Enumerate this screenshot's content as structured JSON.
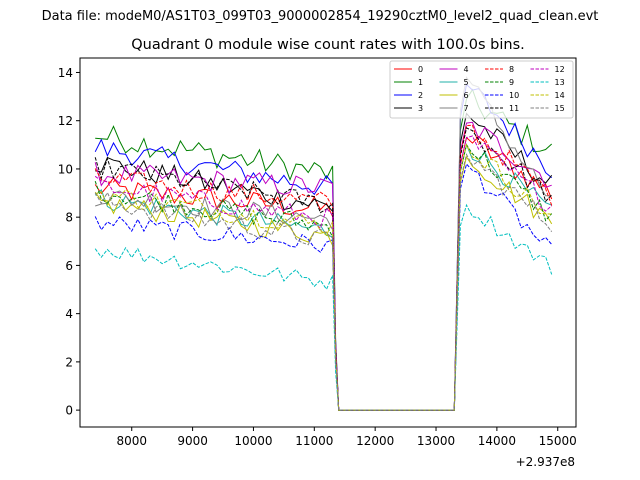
{
  "suptitle": "Data file: modeM0/AS1T03_099T03_9000002854_19290cztM0_level2_quad_clean.evt",
  "chart_data": {
    "type": "line",
    "title": "Quadrant 0 module wise count rates with 100.0s bins.",
    "xlabel": "",
    "ylabel": "",
    "x_offset_label": "+2.937e8",
    "xlim": [
      7150,
      15300
    ],
    "ylim": [
      -0.7,
      14.6
    ],
    "x_ticks": [
      8000,
      9000,
      10000,
      11000,
      12000,
      13000,
      14000,
      15000
    ],
    "x_tick_labels": [
      "8000",
      "9000",
      "10000",
      "11000",
      "12000",
      "13000",
      "14000",
      "15000"
    ],
    "y_ticks": [
      0,
      2,
      4,
      6,
      8,
      10,
      12,
      14
    ],
    "y_tick_labels": [
      "0",
      "2",
      "4",
      "6",
      "8",
      "10",
      "12",
      "14"
    ],
    "legend_position": "top-right",
    "x": {
      "seg1_start": 7400,
      "seg1_end": 11300,
      "gap_low_start": 11400,
      "gap_low_end": 13300,
      "seg2_start": 13400,
      "seg2_end": 14900,
      "step": 100
    },
    "series": [
      {
        "name": "0",
        "color": "#ff0000",
        "dash": "solid",
        "seg1_start": 9.2,
        "seg1_end": 8.3,
        "seg2_peak": 11.3,
        "seg2_end": 9.0,
        "noise": 0.5
      },
      {
        "name": "1",
        "color": "#008000",
        "dash": "solid",
        "seg1_start": 11.4,
        "seg1_end": 9.8,
        "seg2_peak": 12.9,
        "seg2_end": 10.7,
        "noise": 0.55
      },
      {
        "name": "2",
        "color": "#0000ff",
        "dash": "solid",
        "seg1_start": 10.9,
        "seg1_end": 9.2,
        "seg2_peak": 13.5,
        "seg2_end": 10.0,
        "noise": 0.5
      },
      {
        "name": "3",
        "color": "#000000",
        "dash": "solid",
        "seg1_start": 10.3,
        "seg1_end": 8.4,
        "seg2_peak": 12.3,
        "seg2_end": 9.3,
        "noise": 0.5
      },
      {
        "name": "4",
        "color": "#bf00bf",
        "dash": "solid",
        "seg1_start": 9.8,
        "seg1_end": 9.2,
        "seg2_peak": 11.9,
        "seg2_end": 9.5,
        "noise": 0.5
      },
      {
        "name": "5",
        "color": "#20b2aa",
        "dash": "solid",
        "seg1_start": 8.8,
        "seg1_end": 7.4,
        "seg2_peak": 11.0,
        "seg2_end": 8.2,
        "noise": 0.45
      },
      {
        "name": "6",
        "color": "#bfbf00",
        "dash": "solid",
        "seg1_start": 8.6,
        "seg1_end": 7.2,
        "seg2_peak": 10.5,
        "seg2_end": 7.8,
        "noise": 0.45
      },
      {
        "name": "7",
        "color": "#808080",
        "dash": "solid",
        "seg1_start": 8.9,
        "seg1_end": 7.9,
        "seg2_peak": 13.8,
        "seg2_end": 8.6,
        "noise": 0.45
      },
      {
        "name": "8",
        "color": "#ff0000",
        "dash": "dashed",
        "seg1_start": 9.6,
        "seg1_end": 8.6,
        "seg2_peak": 11.8,
        "seg2_end": 8.9,
        "noise": 0.45
      },
      {
        "name": "9",
        "color": "#008000",
        "dash": "dashed",
        "seg1_start": 9.1,
        "seg1_end": 7.6,
        "seg2_peak": 11.0,
        "seg2_end": 8.0,
        "noise": 0.45
      },
      {
        "name": "10",
        "color": "#0000ff",
        "dash": "dashed",
        "seg1_start": 7.8,
        "seg1_end": 6.8,
        "seg2_peak": 10.2,
        "seg2_end": 6.5,
        "noise": 0.4
      },
      {
        "name": "11",
        "color": "#000000",
        "dash": "dashed",
        "seg1_start": 10.1,
        "seg1_end": 8.5,
        "seg2_peak": 11.7,
        "seg2_end": 8.8,
        "noise": 0.45
      },
      {
        "name": "12",
        "color": "#bf00bf",
        "dash": "dashed",
        "seg1_start": 9.3,
        "seg1_end": 7.9,
        "seg2_peak": 11.3,
        "seg2_end": 8.5,
        "noise": 0.45
      },
      {
        "name": "13",
        "color": "#00bfbf",
        "dash": "dashed",
        "seg1_start": 6.7,
        "seg1_end": 5.3,
        "seg2_peak": 8.5,
        "seg2_end": 5.9,
        "noise": 0.35
      },
      {
        "name": "14",
        "color": "#bfbf00",
        "dash": "dashed",
        "seg1_start": 9.0,
        "seg1_end": 7.6,
        "seg2_peak": 11.0,
        "seg2_end": 8.0,
        "noise": 0.45
      },
      {
        "name": "15",
        "color": "#808080",
        "dash": "dashed",
        "seg1_start": 8.7,
        "seg1_end": 7.0,
        "seg2_peak": 10.6,
        "seg2_end": 7.7,
        "noise": 0.45
      }
    ]
  }
}
